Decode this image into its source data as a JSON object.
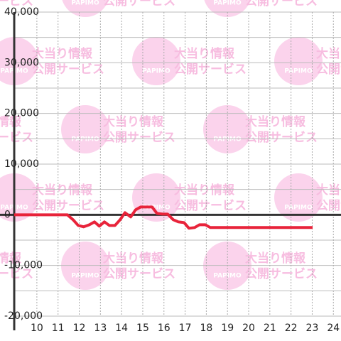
{
  "chart_data": {
    "type": "line",
    "x": [
      8.93,
      11.44,
      11.71,
      11.95,
      12.21,
      12.48,
      12.72,
      12.95,
      13.19,
      13.42,
      13.69,
      13.93,
      14.16,
      14.43,
      14.66,
      14.9,
      15.17,
      15.44,
      15.67,
      15.94,
      16.17,
      16.44,
      16.68,
      16.95,
      17.18,
      17.45,
      17.68,
      17.95,
      18.19,
      23.02
    ],
    "series": [
      {
        "color": "#e8233a",
        "values": [
          0,
          0,
          -980,
          -2100,
          -2380,
          -1960,
          -1400,
          -2240,
          -1400,
          -2100,
          -2100,
          -980,
          420,
          -420,
          980,
          1540,
          1540,
          1540,
          280,
          140,
          140,
          -980,
          -1400,
          -1540,
          -2660,
          -2520,
          -1960,
          -1960,
          -2520,
          -2520
        ]
      }
    ],
    "xlim": [
      8.93,
      24.36
    ],
    "xticks": [
      10,
      11,
      12,
      13,
      14,
      15,
      16,
      17,
      18,
      19,
      20,
      21,
      22,
      23,
      24
    ],
    "ylim": [
      -20000,
      40000
    ],
    "yticks": [
      {
        "value": -20000,
        "label": "-20,000"
      },
      {
        "value": -10000,
        "label": "-10,000"
      },
      0,
      {
        "value": 10000,
        "label": "10,000"
      },
      {
        "value": 20000,
        "label": "20,000"
      },
      {
        "value": 30000,
        "label": "30,000"
      },
      {
        "value": 40000,
        "label": "40,000"
      }
    ],
    "yminor": [
      -15000,
      -5000,
      5000,
      15000,
      25000,
      35000
    ],
    "grid": true
  },
  "watermark": {
    "logo": "PAPIMO",
    "line1": "大当り情報",
    "line2": "公開サービス"
  }
}
